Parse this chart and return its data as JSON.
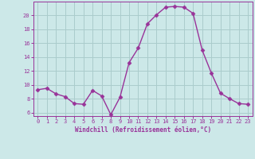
{
  "x": [
    0,
    1,
    2,
    3,
    4,
    5,
    6,
    7,
    8,
    9,
    10,
    11,
    12,
    13,
    14,
    15,
    16,
    17,
    18,
    19,
    20,
    21,
    22,
    23
  ],
  "y": [
    9.3,
    9.5,
    8.7,
    8.3,
    7.3,
    7.2,
    9.2,
    8.4,
    5.7,
    8.2,
    13.2,
    15.3,
    18.8,
    20.1,
    21.2,
    21.3,
    21.2,
    20.3,
    15.0,
    11.7,
    8.8,
    8.0,
    7.3,
    7.2
  ],
  "line_color": "#993399",
  "marker": "D",
  "marker_size": 2.5,
  "bg_color": "#cce8e8",
  "grid_color": "#aacccc",
  "xlabel": "Windchill (Refroidissement éolien,°C)",
  "xlabel_color": "#993399",
  "tick_color": "#993399",
  "ylim": [
    5.5,
    22.0
  ],
  "xlim": [
    -0.5,
    23.5
  ],
  "yticks": [
    6,
    8,
    10,
    12,
    14,
    16,
    18,
    20
  ],
  "xticks": [
    0,
    1,
    2,
    3,
    4,
    5,
    6,
    7,
    8,
    9,
    10,
    11,
    12,
    13,
    14,
    15,
    16,
    17,
    18,
    19,
    20,
    21,
    22,
    23
  ],
  "spine_color": "#993399",
  "linewidth": 1.0
}
